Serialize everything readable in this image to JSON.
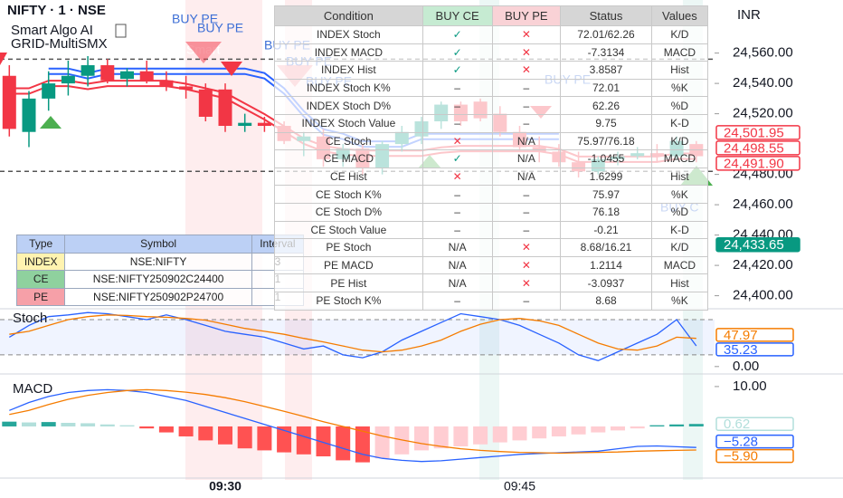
{
  "header": {
    "symbol": "NIFTY · 1 · NSE",
    "indicator": "Smart Algo AI",
    "subtitle": "GRID-MultiSMX",
    "currency": "INR"
  },
  "chart_data": [
    {
      "type": "candlestick",
      "categories": [
        null,
        null,
        null,
        null,
        null,
        null,
        null,
        null,
        null,
        null,
        null,
        "09:30",
        null,
        null,
        null,
        null,
        null,
        null,
        null,
        null,
        null,
        null,
        null,
        null,
        null,
        null,
        "09:45",
        null,
        null,
        null,
        null,
        null,
        null,
        null,
        null,
        null
      ],
      "open": [
        24545,
        24508,
        24530,
        24540,
        24545,
        24552,
        24543,
        24548,
        24542,
        24538,
        24536,
        24536,
        24512,
        24514,
        24512,
        24502,
        24505,
        24490,
        24497,
        24484,
        24500,
        24505,
        24515,
        24526,
        24528,
        24520,
        24508,
        24498,
        24495,
        24488,
        24482,
        24490,
        24492,
        24494,
        24492,
        24500
      ],
      "high": [
        24552,
        24535,
        24548,
        24555,
        24558,
        24556,
        24550,
        24555,
        24548,
        24545,
        24540,
        24540,
        24520,
        24518,
        24515,
        24508,
        24510,
        24500,
        24500,
        24502,
        24512,
        24518,
        24528,
        24528,
        24530,
        24525,
        24512,
        24505,
        24500,
        24495,
        24492,
        24495,
        24498,
        24500,
        24505,
        24502
      ],
      "low": [
        24505,
        24498,
        24522,
        24532,
        24538,
        24540,
        24538,
        24540,
        24535,
        24530,
        24515,
        24508,
        24508,
        24508,
        24500,
        24492,
        24485,
        24485,
        24480,
        24480,
        24495,
        24500,
        24510,
        24512,
        24515,
        24505,
        24495,
        24488,
        24485,
        24478,
        24480,
        24486,
        24490,
        24488,
        24490,
        24488
      ],
      "close": [
        24510,
        24530,
        24540,
        24545,
        24552,
        24542,
        24548,
        24542,
        24538,
        24536,
        24518,
        24512,
        24514,
        24512,
        24502,
        24505,
        24490,
        24497,
        24484,
        24500,
        24508,
        24515,
        24526,
        24515,
        24517,
        24508,
        24498,
        24495,
        24488,
        24482,
        24490,
        24492,
        24494,
        24492,
        24502,
        24492
      ],
      "up_color": "#089981",
      "down_color": "#f23645",
      "lines": [
        {
          "color": "#2962ff",
          "values": [
            null,
            null,
            24548,
            24548,
            24545,
            24548,
            24548,
            24548,
            24548,
            24548,
            24548,
            24548,
            24548,
            24545,
            24535,
            24520,
            24508,
            24505,
            24500,
            24500,
            24500,
            24505,
            24505,
            24505,
            24505,
            24505,
            24505,
            24505,
            24505,
            null,
            null,
            null,
            null,
            null,
            null,
            null
          ]
        },
        {
          "color": "#f23645",
          "values": [
            24535,
            24535,
            24540,
            24540,
            24538,
            24540,
            24540,
            24540,
            24540,
            24538,
            24535,
            24532,
            24525,
            24518,
            24510,
            24502,
            24497,
            24495,
            24494,
            24494,
            24494,
            24494,
            24496,
            24497,
            24497,
            24497,
            24497,
            24497,
            24495,
            24490,
            24490,
            24490,
            24490,
            24490,
            24492,
            24492
          ]
        }
      ],
      "levels": [
        24556,
        24482
      ],
      "ylim": [
        24392,
        24595
      ],
      "yticks": [
        {
          "value": 24400,
          "label": "24,400.00"
        },
        {
          "value": 24420,
          "label": "24,420.00"
        },
        {
          "value": 24440,
          "label": "24,440.00"
        },
        {
          "value": 24460,
          "label": "24,460.00"
        },
        {
          "value": 24480,
          "label": "24,480.00"
        },
        {
          "value": 24520,
          "label": "24,520.00"
        },
        {
          "value": 24540,
          "label": "24,540.00"
        },
        {
          "value": 24560,
          "label": "24,560.00"
        }
      ],
      "tags": [
        {
          "value": 24501.95,
          "label": "24,501.95",
          "color": "#f23645",
          "filled": false
        },
        {
          "value": 24498.55,
          "label": "24,498.55",
          "color": "#f23645",
          "filled": false
        },
        {
          "value": 24491.9,
          "label": "24,491.90",
          "color": "#f23645",
          "filled": false
        },
        {
          "value": 24433.65,
          "label": "24,433.65",
          "color": "#089981",
          "filled": true
        }
      ],
      "annotations": [
        "BUY PE",
        "BUY PE",
        "Smart",
        "BUY PE",
        "BUY PE",
        "BUY PE",
        "BUY PE",
        "BUY C"
      ]
    },
    {
      "type": "line",
      "title": "Stoch",
      "series": [
        {
          "color": "#2962ff",
          "values": [
            50,
            70,
            85,
            88,
            92,
            90,
            85,
            80,
            88,
            80,
            70,
            60,
            55,
            50,
            40,
            30,
            35,
            20,
            15,
            25,
            45,
            60,
            75,
            90,
            85,
            80,
            70,
            55,
            40,
            20,
            10,
            25,
            40,
            55,
            80,
            35.23
          ]
        },
        {
          "color": "#f57c00",
          "values": [
            55,
            60,
            70,
            80,
            85,
            88,
            87,
            85,
            84,
            82,
            79,
            72,
            65,
            60,
            55,
            48,
            42,
            35,
            28,
            25,
            28,
            35,
            45,
            60,
            72,
            80,
            82,
            78,
            70,
            55,
            40,
            30,
            28,
            35,
            50,
            47.97
          ]
        }
      ],
      "levels": [
        80,
        20
      ],
      "ylim": [
        -8,
        100
      ],
      "yticks": [
        {
          "value": 0,
          "label": "0.00"
        }
      ],
      "tags": [
        {
          "value": 47.97,
          "label": "47.97",
          "color": "#f57c00",
          "filled": false
        },
        {
          "value": 35.23,
          "label": "35.23",
          "color": "#2962ff",
          "filled": false
        }
      ]
    },
    {
      "type": "macd",
      "title": "MACD",
      "values": [
        1.2,
        1.0,
        1.1,
        0.9,
        0.8,
        0.5,
        0.3,
        -0.5,
        -1.5,
        -2.5,
        -3.5,
        -4.5,
        -5.5,
        -6.0,
        -6.5,
        -7.0,
        -7.5,
        -8.5,
        -9.0,
        -8.0,
        -7.0,
        -6.0,
        -5.5,
        -5.0,
        -4.5,
        -4.0,
        -3.5,
        -3.0,
        -2.5,
        -2.0,
        -1.5,
        -1.0,
        -0.5,
        0.3,
        0.5,
        0.62
      ],
      "hist_colors": [
        "#26a69a",
        "#b2dfdb",
        "#ff5252",
        "#ffcdd2"
      ],
      "series": [
        {
          "color": "#2962ff",
          "values": [
            4,
            6,
            7.5,
            8.5,
            9,
            9.2,
            9,
            8.5,
            7.5,
            6.5,
            5,
            3.5,
            2,
            0.5,
            -1,
            -2.5,
            -4,
            -5.5,
            -7,
            -8,
            -8.5,
            -8.8,
            -8.6,
            -8.2,
            -7.8,
            -7.4,
            -7,
            -6.8,
            -6.6,
            -6.4,
            -6.2,
            -5.6,
            -5,
            -4.9,
            -5.1,
            -5.28
          ]
        },
        {
          "color": "#f57c00",
          "values": [
            3,
            4,
            5.5,
            6.8,
            7.8,
            8.5,
            9,
            9.2,
            9,
            8.6,
            8,
            7.2,
            6.2,
            5,
            3.8,
            2.5,
            1.2,
            0,
            -1.2,
            -2.4,
            -3.4,
            -4.3,
            -5,
            -5.6,
            -6,
            -6.3,
            -6.5,
            -6.6,
            -6.7,
            -6.6,
            -6.5,
            -6.4,
            -6.2,
            -6.1,
            -6,
            -5.9
          ]
        }
      ],
      "ylim": [
        -13.4,
        12.7
      ],
      "yticks": [
        {
          "value": 10,
          "label": "10.00"
        }
      ],
      "tags": [
        {
          "value": 0.62,
          "label": "0.62",
          "color": "#b2dfdb",
          "filled": false
        },
        {
          "value": -5.28,
          "label": "−5.28",
          "color": "#2962ff",
          "filled": false
        },
        {
          "value": -5.9,
          "label": "−5.90",
          "color": "#f57c00",
          "filled": false
        }
      ]
    }
  ],
  "condition_table": {
    "columns": [
      "Condition",
      "BUY CE",
      "BUY PE",
      "Status",
      "Values"
    ],
    "header_colors": [
      "#d6d6d6",
      "#c6ebd2",
      "#f9d2d6",
      "#d6d6d6",
      "#d6d6d6"
    ],
    "symbol_colors": {
      "✓": "#089981",
      "✕": "#f23645"
    },
    "rows": [
      [
        "INDEX Stoch",
        "✓",
        "✕",
        "72.01/62.26",
        "K/D"
      ],
      [
        "INDEX MACD",
        "✓",
        "✕",
        "-7.3134",
        "MACD"
      ],
      [
        "INDEX Hist",
        "✓",
        "✕",
        "3.8587",
        "Hist"
      ],
      [
        "INDEX Stoch K%",
        "–",
        "–",
        "72.01",
        "%K"
      ],
      [
        "INDEX Stoch D%",
        "–",
        "–",
        "62.26",
        "%D"
      ],
      [
        "INDEX Stoch Value",
        "–",
        "–",
        "9.75",
        "K-D"
      ],
      [
        "CE Stoch",
        "✕",
        "N/A",
        "75.97/76.18",
        "K/D"
      ],
      [
        "CE MACD",
        "✓",
        "N/A",
        "-1.0455",
        "MACD"
      ],
      [
        "CE Hist",
        "✕",
        "N/A",
        "1.6299",
        "Hist"
      ],
      [
        "CE Stoch K%",
        "–",
        "–",
        "75.97",
        "%K"
      ],
      [
        "CE Stoch D%",
        "–",
        "–",
        "76.18",
        "%D"
      ],
      [
        "CE Stoch Value",
        "–",
        "–",
        "-0.21",
        "K-D"
      ],
      [
        "PE Stoch",
        "N/A",
        "✕",
        "8.68/16.21",
        "K/D"
      ],
      [
        "PE MACD",
        "N/A",
        "✕",
        "1.2114",
        "MACD"
      ],
      [
        "PE Hist",
        "N/A",
        "✕",
        "-3.0937",
        "Hist"
      ],
      [
        "PE Stoch K%",
        "–",
        "–",
        "8.68",
        "%K"
      ]
    ]
  },
  "symbol_table": {
    "columns": [
      "Type",
      "Symbol",
      "Interval"
    ],
    "rows": [
      {
        "cells": [
          "INDEX",
          "NSE:NIFTY",
          "3"
        ],
        "color": "#fff3b0"
      },
      {
        "cells": [
          "CE",
          "NSE:NIFTY250902C24400",
          "1"
        ],
        "color": "#8fd19e"
      },
      {
        "cells": [
          "PE",
          "NSE:NIFTY250902P24700",
          "1"
        ],
        "color": "#f6a0a8"
      }
    ]
  }
}
